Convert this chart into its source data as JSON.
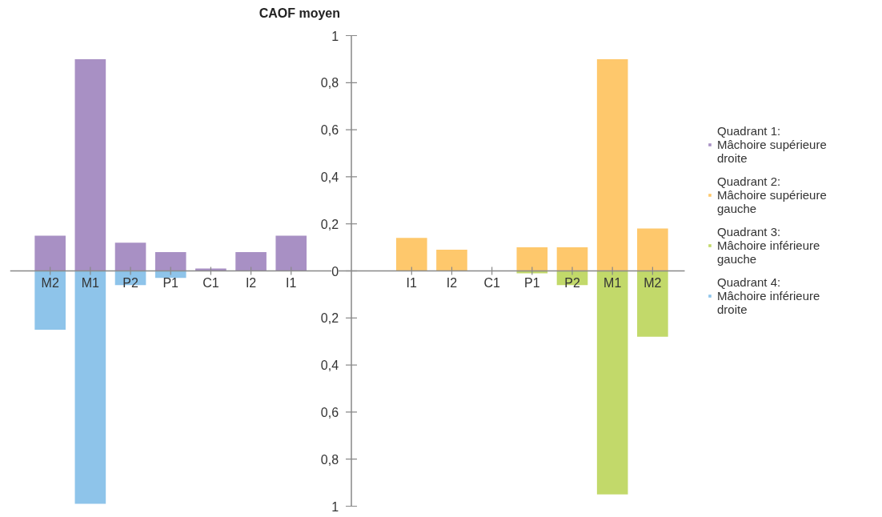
{
  "chart_data": {
    "type": "bar",
    "ylabel": "CAOF moyen",
    "categories": [
      "M2",
      "M1",
      "P2",
      "P1",
      "C1",
      "I2",
      "I1",
      null,
      null,
      "I1",
      "I2",
      "C1",
      "P1",
      "P2",
      "M1",
      "M2"
    ],
    "ylim": [
      -1,
      1
    ],
    "yticks": [
      {
        "value": -1,
        "label": "1"
      },
      {
        "value": -0.8,
        "label": "0,8"
      },
      {
        "value": -0.6,
        "label": "0,6"
      },
      {
        "value": -0.4,
        "label": "0,4"
      },
      {
        "value": -0.2,
        "label": "0,2"
      },
      0,
      {
        "value": 0.2,
        "label": "0,2"
      },
      {
        "value": 0.4,
        "label": "0,4"
      },
      {
        "value": 0.6,
        "label": "0,6"
      },
      {
        "value": 0.8,
        "label": "0,8"
      },
      1
    ],
    "grid": false,
    "legend": "top right",
    "marker": "square",
    "stacked": true,
    "series": [
      {
        "name": "Quadrant 1: Mâchoire supérieure droite",
        "color": "#a890c4",
        "values": [
          0.15,
          0.9,
          0.12,
          0.08,
          0.01,
          0.08,
          0.15,
          null,
          null,
          null,
          null,
          null,
          null,
          null,
          null,
          null
        ]
      },
      {
        "name": "Quadrant 2: Mâchoire supérieure gauche",
        "color": "#fec86c",
        "values": [
          null,
          null,
          null,
          null,
          null,
          null,
          null,
          null,
          null,
          0.14,
          0.09,
          null,
          0.1,
          0.1,
          0.9,
          0.18
        ]
      },
      {
        "name": "Quadrant 3: Mâchoire inférieure gauche",
        "color": "#c2d96a",
        "values": [
          null,
          null,
          null,
          null,
          null,
          null,
          null,
          null,
          null,
          null,
          null,
          null,
          -0.01,
          -0.06,
          -0.95,
          -0.28
        ]
      },
      {
        "name": "Quadrant 4: Mâchoire inférieure droite",
        "color": "#8ec4ea",
        "values": [
          -0.25,
          -0.99,
          -0.06,
          -0.03,
          null,
          null,
          null,
          null,
          null,
          null,
          null,
          null,
          null,
          null,
          null,
          null
        ]
      }
    ]
  }
}
